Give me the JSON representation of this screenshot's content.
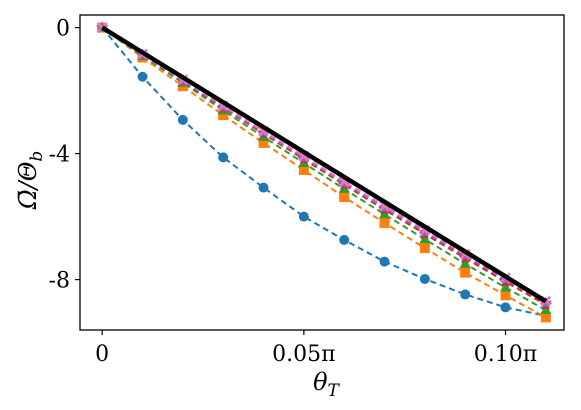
{
  "chart_data": {
    "type": "line",
    "xlabel": "θ_T",
    "ylabel": "Ω̄/Θ_b",
    "xlabel_parts": {
      "main": "θ",
      "sub": "T"
    },
    "ylabel_parts": {
      "main": "Ω̄/Θ",
      "sub": "b"
    },
    "xlim": [
      -0.0055,
      0.1145
    ],
    "ylim": [
      -9.6,
      0.4
    ],
    "x_unit": "π",
    "x_ticks": [
      {
        "value": 0,
        "label": "0"
      },
      {
        "value": 0.05,
        "label": "0.05π"
      },
      {
        "value": 0.1,
        "label": "0.10π"
      }
    ],
    "y_ticks": [
      {
        "value": 0,
        "label": "0"
      },
      {
        "value": -4,
        "label": "-4"
      },
      {
        "value": -8,
        "label": "-8"
      }
    ],
    "grid": false,
    "legend": "none",
    "x": [
      0,
      0.01,
      0.02,
      0.03,
      0.04,
      0.05,
      0.06,
      0.07,
      0.08,
      0.09,
      0.1,
      0.11
    ],
    "series": [
      {
        "color": "#1f77b4",
        "marker": "circle",
        "line": "dashed",
        "values": [
          0,
          -1.56,
          -2.93,
          -4.12,
          -5.08,
          -6.0,
          -6.74,
          -7.43,
          -7.98,
          -8.47,
          -8.88,
          -9.15
        ]
      },
      {
        "color": "#ff7f0e",
        "marker": "square",
        "line": "dashed",
        "values": [
          0,
          -0.95,
          -1.86,
          -2.78,
          -3.66,
          -4.52,
          -5.38,
          -6.2,
          -7.0,
          -7.78,
          -8.5,
          -9.2
        ]
      },
      {
        "color": "#2ca02c",
        "marker": "triangle",
        "line": "dashed",
        "values": [
          0,
          -0.9,
          -1.75,
          -2.63,
          -3.47,
          -4.3,
          -5.12,
          -5.93,
          -6.72,
          -7.5,
          -8.25,
          -8.97
        ]
      },
      {
        "color": "#d62728",
        "marker": "star",
        "line": "dashed",
        "values": [
          0,
          -0.87,
          -1.7,
          -2.55,
          -3.37,
          -4.18,
          -4.99,
          -5.78,
          -6.55,
          -7.32,
          -8.07,
          -8.8
        ]
      },
      {
        "color": "#9467bd",
        "marker": "star",
        "line": "dashed",
        "values": [
          0,
          -0.86,
          -1.68,
          -2.52,
          -3.33,
          -4.13,
          -4.94,
          -5.72,
          -6.49,
          -7.25,
          -8.0,
          -8.74
        ]
      },
      {
        "color": "#e377c2",
        "marker": "x",
        "line": "dashed",
        "values": [
          0,
          -0.84,
          -1.65,
          -2.48,
          -3.29,
          -4.08,
          -4.89,
          -5.66,
          -6.43,
          -7.19,
          -7.94,
          -8.68
        ]
      },
      {
        "color": "#000000",
        "marker": "none",
        "line": "solid",
        "values": [
          0,
          -0.79,
          -1.58,
          -2.37,
          -3.16,
          -3.95,
          -4.74,
          -5.53,
          -6.32,
          -7.11,
          -7.9,
          -8.69
        ]
      }
    ]
  }
}
